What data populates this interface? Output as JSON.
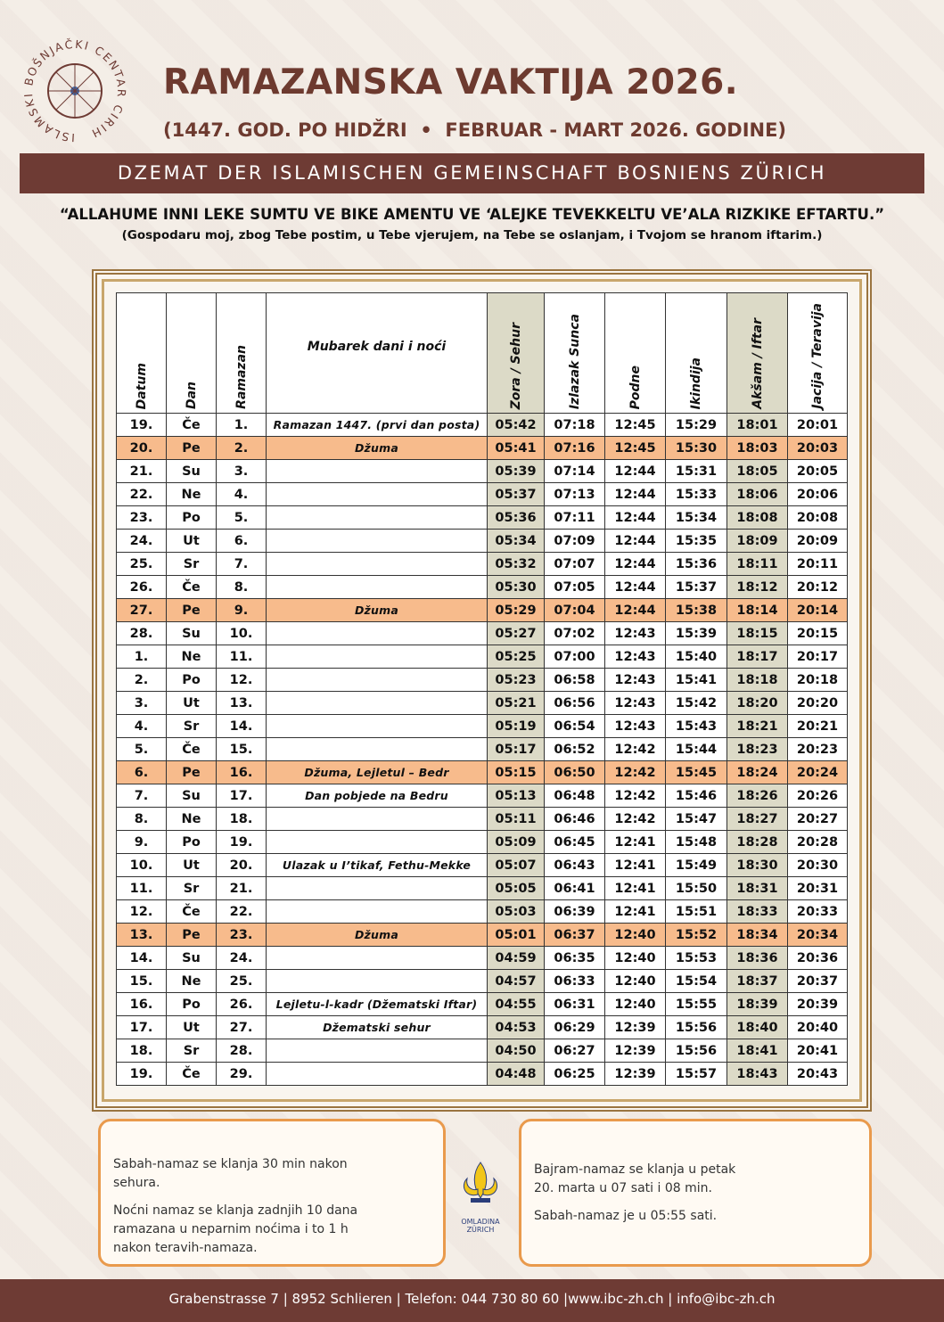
{
  "logo": {
    "ring_text": "ISLAMSKI BOŠNJAČKI CENTAR CIRIH"
  },
  "header": {
    "title": "RAMAZANSKA VAKTIJA 2026.",
    "subtitle": "(1447. GOD. PO HIDŽRI  •  FEBRUAR - MART 2026. GODINE)"
  },
  "banner": "DZEMAT DER ISLAMISCHEN GEMEINSCHAFT BOSNIENS ZÜRICH",
  "quote": "“ALLAHUME INNI LEKE SUMTU VE BIKE AMENTU VE ‘ALEJKE TEVEKKELTU VE’ALA RIZKIKE EFTARTU.”",
  "translation": "(Gospodaru moj, zbog Tebe postim, u Tebe vjerujem, na Tebe se oslanjam, i Tvojom se hranom iftarim.)",
  "table": {
    "headers": [
      "Datum",
      "Dan",
      "Ramazan",
      "Mubarek dani i noći",
      "Zora / Sehur",
      "Izlazak Sunca",
      "Podne",
      "Ikindija",
      "Akšam / Iftar",
      "Jacija / Teravija"
    ],
    "rows": [
      [
        "19.",
        "Če",
        "1.",
        "Ramazan 1447. (prvi dan posta)",
        "05:42",
        "07:18",
        "12:45",
        "15:29",
        "18:01",
        "20:01"
      ],
      [
        "20.",
        "Pe",
        "2.",
        "Džuma",
        "05:41",
        "07:16",
        "12:45",
        "15:30",
        "18:03",
        "20:03"
      ],
      [
        "21.",
        "Su",
        "3.",
        null,
        "05:39",
        "07:14",
        "12:44",
        "15:31",
        "18:05",
        "20:05"
      ],
      [
        "22.",
        "Ne",
        "4.",
        null,
        "05:37",
        "07:13",
        "12:44",
        "15:33",
        "18:06",
        "20:06"
      ],
      [
        "23.",
        "Po",
        "5.",
        null,
        "05:36",
        "07:11",
        "12:44",
        "15:34",
        "18:08",
        "20:08"
      ],
      [
        "24.",
        "Ut",
        "6.",
        null,
        "05:34",
        "07:09",
        "12:44",
        "15:35",
        "18:09",
        "20:09"
      ],
      [
        "25.",
        "Sr",
        "7.",
        null,
        "05:32",
        "07:07",
        "12:44",
        "15:36",
        "18:11",
        "20:11"
      ],
      [
        "26.",
        "Če",
        "8.",
        null,
        "05:30",
        "07:05",
        "12:44",
        "15:37",
        "18:12",
        "20:12"
      ],
      [
        "27.",
        "Pe",
        "9.",
        "Džuma",
        "05:29",
        "07:04",
        "12:44",
        "15:38",
        "18:14",
        "20:14"
      ],
      [
        "28.",
        "Su",
        "10.",
        null,
        "05:27",
        "07:02",
        "12:43",
        "15:39",
        "18:15",
        "20:15"
      ],
      [
        "1.",
        "Ne",
        "11.",
        null,
        "05:25",
        "07:00",
        "12:43",
        "15:40",
        "18:17",
        "20:17"
      ],
      [
        "2.",
        "Po",
        "12.",
        null,
        "05:23",
        "06:58",
        "12:43",
        "15:41",
        "18:18",
        "20:18"
      ],
      [
        "3.",
        "Ut",
        "13.",
        null,
        "05:21",
        "06:56",
        "12:43",
        "15:42",
        "18:20",
        "20:20"
      ],
      [
        "4.",
        "Sr",
        "14.",
        null,
        "05:19",
        "06:54",
        "12:43",
        "15:43",
        "18:21",
        "20:21"
      ],
      [
        "5.",
        "Če",
        "15.",
        null,
        "05:17",
        "06:52",
        "12:42",
        "15:44",
        "18:23",
        "20:23"
      ],
      [
        "6.",
        "Pe",
        "16.",
        "Džuma, Lejletul – Bedr",
        "05:15",
        "06:50",
        "12:42",
        "15:45",
        "18:24",
        "20:24"
      ],
      [
        "7.",
        "Su",
        "17.",
        "Dan pobjede na Bedru",
        "05:13",
        "06:48",
        "12:42",
        "15:46",
        "18:26",
        "20:26"
      ],
      [
        "8.",
        "Ne",
        "18.",
        null,
        "05:11",
        "06:46",
        "12:42",
        "15:47",
        "18:27",
        "20:27"
      ],
      [
        "9.",
        "Po",
        "19.",
        null,
        "05:09",
        "06:45",
        "12:41",
        "15:48",
        "18:28",
        "20:28"
      ],
      [
        "10.",
        "Ut",
        "20.",
        "Ulazak u I’tikaf, Fethu-Mekke",
        "05:07",
        "06:43",
        "12:41",
        "15:49",
        "18:30",
        "20:30"
      ],
      [
        "11.",
        "Sr",
        "21.",
        null,
        "05:05",
        "06:41",
        "12:41",
        "15:50",
        "18:31",
        "20:31"
      ],
      [
        "12.",
        "Če",
        "22.",
        null,
        "05:03",
        "06:39",
        "12:41",
        "15:51",
        "18:33",
        "20:33"
      ],
      [
        "13.",
        "Pe",
        "23.",
        "Džuma",
        "05:01",
        "06:37",
        "12:40",
        "15:52",
        "18:34",
        "20:34"
      ],
      [
        "14.",
        "Su",
        "24.",
        null,
        "04:59",
        "06:35",
        "12:40",
        "15:53",
        "18:36",
        "20:36"
      ],
      [
        "15.",
        "Ne",
        "25.",
        null,
        "04:57",
        "06:33",
        "12:40",
        "15:54",
        "18:37",
        "20:37"
      ],
      [
        "16.",
        "Po",
        "26.",
        "Lejletu-l-kadr (Džematski Iftar)",
        "04:55",
        "06:31",
        "12:40",
        "15:55",
        "18:39",
        "20:39"
      ],
      [
        "17.",
        "Ut",
        "27.",
        "Džematski sehur",
        "04:53",
        "06:29",
        "12:39",
        "15:56",
        "18:40",
        "20:40"
      ],
      [
        "18.",
        "Sr",
        "28.",
        null,
        "04:50",
        "06:27",
        "12:39",
        "15:56",
        "18:41",
        "20:41"
      ],
      [
        "19.",
        "Če",
        "29.",
        null,
        "04:48",
        "06:25",
        "12:39",
        "15:57",
        "18:43",
        "20:43"
      ]
    ]
  },
  "notes_left": [
    "Sabah-namaz se klanja 30 min nakon sehura.",
    "Noćni namaz se klanja zadnjih 10 dana ramazana u neparnim noćima i to 1 h nakon teravih-namaza."
  ],
  "youth_logo": "OMLADINA ZÜRICH",
  "notes_right": [
    "Bajram-namaz se klanja u petak 20. marta u 07 sati i 08 min.",
    "Sabah-namaz je u 05:55 sati."
  ],
  "footer": "Grabenstrasse 7 | 8952 Schlieren | Telefon: 044 730 80 60 |www.ibc-zh.ch | info@ibc-zh.ch"
}
